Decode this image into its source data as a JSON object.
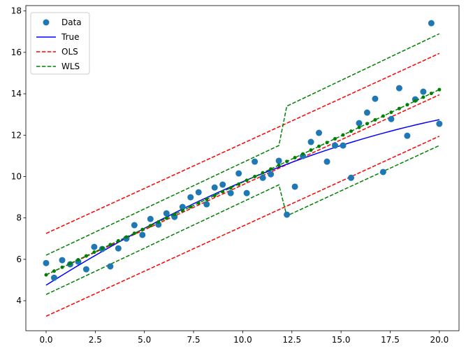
{
  "chart_data": {
    "type": "line",
    "title": "",
    "xlabel": "",
    "ylabel": "",
    "xlim": [
      -1.03,
      21.0
    ],
    "ylim": [
      2.55,
      18.26
    ],
    "grid": false,
    "legend_placement": "top-left",
    "xticks": [
      0,
      2.5,
      5,
      7.5,
      10,
      12.5,
      15,
      17.5,
      20
    ],
    "xtick_labels": [
      "0.0",
      "2.5",
      "5.0",
      "7.5",
      "10.0",
      "12.5",
      "15.0",
      "17.5",
      "20.0"
    ],
    "yticks": [
      4,
      6,
      8,
      10,
      12,
      14,
      16,
      18
    ],
    "ytick_labels": [
      "4",
      "6",
      "8",
      "10",
      "12",
      "14",
      "16",
      "18"
    ],
    "legend": [
      {
        "label": "Data",
        "style": "marker",
        "color": "#1f77b4"
      },
      {
        "label": "True",
        "style": "solid",
        "color": "#0000ff"
      },
      {
        "label": "OLS",
        "style": "dashed",
        "color": "#ff0000"
      },
      {
        "label": "WLS",
        "style": "dashed",
        "color": "#008000"
      }
    ],
    "data_points": {
      "name": "Data",
      "color": "#1f77b4",
      "x_range": [
        0,
        20
      ],
      "y": [
        5.82,
        5.11,
        5.96,
        5.76,
        5.89,
        5.52,
        6.6,
        6.5,
        5.66,
        6.53,
        7.0,
        7.65,
        7.18,
        7.95,
        7.68,
        8.22,
        8.05,
        8.53,
        9.0,
        9.24,
        8.66,
        9.47,
        9.61,
        9.2,
        10.15,
        9.2,
        10.72,
        9.94,
        10.11,
        10.76,
        8.16,
        9.51,
        10.99,
        11.67,
        12.11,
        10.72,
        11.5,
        11.5,
        9.94,
        12.58,
        13.09,
        13.76,
        10.22,
        12.78,
        14.27,
        11.97,
        13.73,
        14.1,
        17.41,
        12.55
      ]
    },
    "true_curve": {
      "name": "True",
      "color": "#0000ff",
      "formula_coeffs": {
        "intercept": 5,
        "slope": 0.5,
        "quad": -0.01,
        "center": 5
      }
    },
    "ols": {
      "name": "OLS",
      "color": "#ff0000",
      "fit": [
        [
          0,
          5.25
        ],
        [
          20,
          13.95
        ]
      ],
      "upper": [
        [
          0,
          7.25
        ],
        [
          20,
          15.95
        ]
      ],
      "lower": [
        [
          0,
          3.25
        ],
        [
          20,
          11.95
        ]
      ]
    },
    "wls": {
      "name": "WLS",
      "color": "#008000",
      "fit": [
        [
          0,
          5.25
        ],
        [
          20,
          14.2
        ]
      ],
      "upper": [
        [
          0,
          6.2
        ],
        [
          11.84,
          11.5
        ],
        [
          12.24,
          13.4
        ],
        [
          20,
          16.9
        ]
      ],
      "lower": [
        [
          0,
          4.3
        ],
        [
          11.84,
          9.6
        ],
        [
          12.24,
          8.1
        ],
        [
          20,
          11.5
        ]
      ]
    }
  }
}
